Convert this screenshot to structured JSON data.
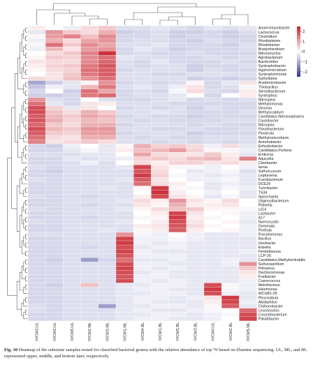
{
  "caption": {
    "label": "Fig. 10",
    "text": "Heatmap of the substrate samples tested for classified bacterial genera with the relative abundance of top 70 based on illumine sequencing. UL, ML, and BL represented upper, middle, and bottom later, respectively"
  },
  "chart_data": {
    "type": "heatmap",
    "samples": [
      "IVCW3.UL",
      "IVCW2.UL",
      "IVCW5.UL",
      "IVCW2.ML",
      "IVCW3.ML",
      "IVCW1.ML",
      "IVCW4.BL",
      "IVCW1.BL",
      "IVCW5.BL",
      "IVCW3.BL",
      "IVCW4.UL",
      "IVCW2.BL",
      "IVCW5.ML"
    ],
    "genera": [
      "Anaeromyxobacter",
      "Lactococcus",
      "Clostridium",
      "Rhodoplanes",
      "Rhodobacter",
      "Bradyrhizobium",
      "Nitrosocyclus",
      "Agrobacterium",
      "Bacteroides",
      "Syntrophobacter",
      "Hyphomicrobium",
      "Syntrophomonas",
      "Sulfuritalea",
      "Acidaminobacter",
      "Thiobacillus",
      "Sterolibacterium",
      "Syntrophus",
      "Nitrospina",
      "Methylomonas",
      "Devosia",
      "Methylocaldum",
      "Candidatus.Nitrososphaera",
      "Caulobacter",
      "Nitrospira",
      "Flavobacterium",
      "Fluviicola",
      "Methylomicrobium",
      "Acinetobacter",
      "Enhydrobacter",
      "Candidatus.Portiera",
      "Emticicia",
      "Aquicella",
      "Clavibacter",
      "Iamia",
      "Sulfuricurvum",
      "Leptonema",
      "Fusobacterium",
      "DCE29",
      "Turicibacter",
      "TS34",
      "Spirochaeta",
      "Uliginosibacterium",
      "Pilimelia",
      "u114",
      "Lacibacter",
      "A17",
      "Nannocystis",
      "Gemmata",
      "Pirellula",
      "Pseudomonas",
      "Bacillus",
      "Geobacter",
      "Estrella",
      "Fimbriimonas",
      "LCP-26",
      "Candidatus.Methylomirabilis",
      "Sulfurospirillum",
      "Pelosinus",
      "Dechloromonas",
      "Fusibacter",
      "Coprococcus",
      "Meiothermus",
      "Halomonas",
      "WCHB1-05",
      "Phormidium",
      "Alkaliphilus",
      "Chthonobacter",
      "Leuconostoc",
      "Corynebacterium",
      "Paludibacter"
    ],
    "values": [
      [
        0.2,
        0.0,
        -0.2,
        0.4,
        0.6,
        -0.4,
        -0.4,
        -0.3,
        -0.4,
        -0.5,
        -0.3,
        -0.4,
        -0.3
      ],
      [
        -0.3,
        1.2,
        0.6,
        0.4,
        0.9,
        -0.6,
        -0.5,
        -0.4,
        -0.6,
        -0.6,
        -0.5,
        -0.6,
        -0.4
      ],
      [
        0.1,
        1.1,
        1.4,
        0.7,
        1.3,
        -0.5,
        -0.5,
        -0.4,
        -0.6,
        -0.5,
        -0.5,
        -0.6,
        -0.5
      ],
      [
        -0.2,
        0.9,
        0.4,
        1.0,
        1.2,
        -0.5,
        -0.4,
        -0.4,
        -0.5,
        -0.6,
        -0.4,
        -0.5,
        -0.5
      ],
      [
        -0.1,
        1.6,
        0.6,
        1.3,
        1.0,
        -0.4,
        -0.4,
        -0.3,
        -0.5,
        -0.5,
        -0.5,
        -0.6,
        -0.4
      ],
      [
        -0.2,
        0.8,
        0.3,
        1.1,
        1.2,
        -0.5,
        -0.3,
        -0.4,
        -0.6,
        -0.5,
        -0.5,
        -0.5,
        -0.4
      ],
      [
        0.0,
        0.4,
        0.6,
        1.4,
        2.3,
        -0.5,
        -0.4,
        -0.5,
        -0.5,
        -0.4,
        -0.5,
        -0.5,
        -0.5
      ],
      [
        0.1,
        0.6,
        0.5,
        1.3,
        1.6,
        -0.3,
        -0.4,
        -0.4,
        -0.5,
        -0.5,
        -0.4,
        -0.5,
        -0.4
      ],
      [
        0.3,
        0.4,
        0.4,
        1.3,
        1.7,
        -0.4,
        -0.5,
        -0.3,
        -0.5,
        -0.5,
        -0.5,
        -0.4,
        -0.5
      ],
      [
        0.2,
        0.5,
        0.6,
        1.5,
        1.9,
        -0.4,
        -0.5,
        -0.4,
        -0.4,
        -0.6,
        -0.5,
        -0.5,
        -0.4
      ],
      [
        0.1,
        0.4,
        0.5,
        1.6,
        1.8,
        -0.5,
        -0.4,
        -0.4,
        -0.4,
        -0.6,
        -0.4,
        -0.5,
        -0.5
      ],
      [
        0.0,
        0.3,
        0.6,
        1.5,
        1.8,
        -0.4,
        -0.4,
        -0.5,
        -0.5,
        -0.4,
        -0.4,
        -0.4,
        -0.4
      ],
      [
        0.4,
        0.3,
        0.7,
        1.2,
        1.6,
        -0.4,
        -0.4,
        -0.4,
        -0.4,
        -0.6,
        -0.5,
        -0.6,
        -0.5
      ],
      [
        -1.1,
        -0.6,
        -0.3,
        0.1,
        1.2,
        -0.5,
        -0.4,
        -0.5,
        -0.4,
        0.1,
        -0.5,
        -0.3,
        0.3
      ],
      [
        -0.7,
        -0.2,
        -0.3,
        0.8,
        1.5,
        -0.4,
        -0.3,
        -0.4,
        -0.2,
        0.3,
        -0.5,
        -0.4,
        -0.1
      ],
      [
        -0.5,
        0.0,
        -0.6,
        1.6,
        1.0,
        -0.5,
        -0.4,
        -0.5,
        -0.1,
        0.4,
        -0.4,
        -0.5,
        0.2
      ],
      [
        -0.6,
        -0.6,
        -0.5,
        1.5,
        1.7,
        -0.5,
        -0.4,
        -0.4,
        -0.3,
        0.0,
        -0.5,
        0.0,
        0.2
      ],
      [
        1.2,
        -0.4,
        -0.5,
        0.0,
        -0.4,
        -0.5,
        -0.5,
        -0.4,
        -0.3,
        -0.5,
        -0.4,
        -0.5,
        -0.4
      ],
      [
        1.6,
        -0.3,
        -0.5,
        0.3,
        0.2,
        -0.4,
        -0.4,
        -0.4,
        -0.5,
        -0.5,
        -0.5,
        -0.5,
        -0.5
      ],
      [
        2.0,
        0.5,
        -0.3,
        0.3,
        0.0,
        -0.5,
        -0.4,
        -0.5,
        -0.4,
        -0.6,
        -0.4,
        -0.5,
        -0.5
      ],
      [
        2.0,
        0.7,
        0.4,
        0.9,
        0.6,
        -0.4,
        -0.4,
        -0.3,
        -0.4,
        -0.5,
        -0.5,
        -0.5,
        -0.4
      ],
      [
        1.8,
        0.8,
        0.6,
        1.0,
        0.8,
        -0.5,
        -0.4,
        -0.5,
        -0.5,
        -0.6,
        -0.5,
        -0.5,
        -0.5
      ],
      [
        1.9,
        0.9,
        0.5,
        0.8,
        0.7,
        -0.4,
        -0.5,
        -0.4,
        -0.5,
        -0.5,
        -0.5,
        -0.4,
        -0.4
      ],
      [
        1.7,
        0.6,
        0.4,
        0.9,
        0.9,
        -0.5,
        -0.4,
        -0.4,
        -0.4,
        -0.5,
        -0.4,
        -0.5,
        -0.5
      ],
      [
        2.0,
        0.8,
        0.6,
        1.2,
        1.2,
        -0.4,
        -0.4,
        -0.5,
        -0.5,
        -0.4,
        -0.5,
        -0.5,
        -0.4
      ],
      [
        1.8,
        0.6,
        0.5,
        1.1,
        1.1,
        -0.5,
        -0.4,
        -0.4,
        -0.4,
        -0.6,
        -0.5,
        -0.5,
        -0.5
      ],
      [
        1.6,
        0.4,
        0.3,
        0.9,
        0.9,
        -0.4,
        -0.5,
        -0.4,
        -0.5,
        -0.5,
        -0.4,
        -0.4,
        -0.4
      ],
      [
        1.4,
        0.3,
        0.4,
        0.6,
        0.4,
        -0.4,
        -0.4,
        -0.5,
        -0.4,
        -0.5,
        -0.4,
        -0.5,
        -0.4
      ],
      [
        -0.5,
        -0.6,
        -0.2,
        0.0,
        -0.3,
        0.1,
        0.9,
        0.5,
        0.6,
        0.4,
        -0.2,
        0.4,
        -0.3
      ],
      [
        -0.5,
        -0.5,
        -0.3,
        -0.1,
        -0.3,
        0.2,
        0.7,
        0.8,
        1.1,
        0.5,
        0.1,
        -0.1,
        -0.2
      ],
      [
        -0.4,
        -0.4,
        -0.4,
        -0.3,
        -0.3,
        0.0,
        1.0,
        0.4,
        0.3,
        0.3,
        0.6,
        0.2,
        -0.3
      ],
      [
        -0.5,
        -0.5,
        -0.3,
        -0.4,
        -0.3,
        -0.2,
        0.5,
        0.6,
        0.4,
        0.7,
        0.8,
        0.3,
        1.4
      ],
      [
        -0.5,
        -0.5,
        -0.4,
        -0.2,
        -0.4,
        0.0,
        0.4,
        0.2,
        0.5,
        0.5,
        0.3,
        0.4,
        0.2
      ],
      [
        -0.4,
        -0.5,
        -0.4,
        -0.4,
        -0.4,
        -0.3,
        2.1,
        0.3,
        0.1,
        -0.1,
        -0.2,
        0.0,
        -0.2
      ],
      [
        -0.5,
        -0.6,
        -0.4,
        -0.4,
        -0.4,
        -0.4,
        1.9,
        0.4,
        0.0,
        -0.3,
        -0.2,
        -0.1,
        -0.4
      ],
      [
        -0.5,
        -0.5,
        -0.4,
        -0.4,
        -0.4,
        -0.4,
        2.2,
        0.5,
        -0.1,
        -0.2,
        -0.3,
        -0.2,
        -0.3
      ],
      [
        -0.4,
        -0.5,
        -0.4,
        -0.4,
        -0.4,
        -0.3,
        1.8,
        0.3,
        0.0,
        -0.2,
        -0.2,
        -0.1,
        -0.3
      ],
      [
        -0.5,
        -0.5,
        -0.4,
        -0.4,
        -0.4,
        -0.4,
        1.6,
        0.4,
        0.2,
        0.0,
        -0.3,
        -0.2,
        -0.3
      ],
      [
        -0.5,
        -0.5,
        -0.4,
        -0.4,
        -0.3,
        -0.4,
        0.1,
        2.2,
        0.1,
        -0.1,
        -0.3,
        -0.1,
        -0.2
      ],
      [
        -0.5,
        -0.5,
        -0.4,
        -0.4,
        -0.4,
        -0.4,
        0.0,
        2.3,
        0.2,
        0.0,
        -0.2,
        0.0,
        -0.3
      ],
      [
        -0.4,
        -0.5,
        -0.4,
        -0.5,
        -0.4,
        -0.4,
        0.2,
        2.0,
        0.3,
        0.1,
        -0.3,
        -0.1,
        -0.3
      ],
      [
        -0.5,
        -0.5,
        -0.4,
        -0.4,
        -0.4,
        -0.3,
        0.4,
        0.2,
        1.2,
        0.3,
        0.1,
        0.4,
        0.0
      ],
      [
        -0.5,
        -0.5,
        -0.4,
        -0.5,
        -0.4,
        -0.4,
        0.3,
        0.1,
        0.9,
        0.2,
        0.2,
        0.3,
        0.0
      ],
      [
        -0.4,
        -0.5,
        -0.4,
        -0.4,
        -0.4,
        -0.3,
        0.1,
        0.4,
        0.7,
        0.6,
        0.1,
        0.1,
        -0.1
      ],
      [
        -0.5,
        -0.5,
        -0.4,
        -0.4,
        -0.4,
        -0.4,
        0.0,
        0.2,
        2.1,
        0.3,
        0.0,
        0.1,
        -0.2
      ],
      [
        -0.5,
        -0.5,
        -0.4,
        -0.5,
        -0.4,
        -0.4,
        -0.1,
        0.1,
        2.2,
        0.2,
        -0.1,
        0.0,
        -0.2
      ],
      [
        -0.4,
        -0.5,
        -0.4,
        -0.4,
        -0.4,
        -0.3,
        0.0,
        0.2,
        2.0,
        0.3,
        0.0,
        0.1,
        -0.3
      ],
      [
        -0.5,
        -0.5,
        -0.4,
        -0.4,
        -0.4,
        -0.4,
        0.2,
        0.3,
        1.9,
        0.4,
        0.1,
        0.0,
        -0.2
      ],
      [
        -0.5,
        -0.5,
        -0.4,
        -0.4,
        -0.3,
        -0.4,
        0.1,
        0.2,
        1.8,
        0.2,
        0.0,
        0.1,
        -0.2
      ],
      [
        -0.4,
        -0.4,
        -0.4,
        -0.4,
        -0.4,
        1.2,
        -0.1,
        -0.2,
        0.0,
        -0.2,
        -0.3,
        -0.3,
        -0.2
      ],
      [
        -0.5,
        -0.5,
        -0.4,
        -0.4,
        -0.4,
        2.1,
        -0.2,
        -0.2,
        -0.1,
        -0.2,
        -0.3,
        -0.3,
        -0.3
      ],
      [
        -0.5,
        -0.5,
        -0.4,
        -0.4,
        -0.4,
        2.2,
        -0.2,
        -0.3,
        -0.2,
        -0.3,
        -0.3,
        -0.3,
        -0.3
      ],
      [
        -0.5,
        -0.5,
        -0.4,
        -0.5,
        -0.4,
        2.0,
        -0.3,
        -0.2,
        -0.2,
        -0.3,
        -0.3,
        -0.3,
        -0.3
      ],
      [
        -0.5,
        -0.5,
        -0.4,
        -0.4,
        -0.4,
        2.1,
        -0.2,
        -0.3,
        -0.3,
        -0.3,
        -0.3,
        -0.3,
        -0.2
      ],
      [
        -0.5,
        -0.5,
        -0.4,
        -0.4,
        -0.4,
        1.9,
        -0.2,
        -0.2,
        -0.2,
        -0.3,
        -0.3,
        -0.3,
        -0.3
      ],
      [
        -0.5,
        -0.6,
        -0.4,
        -1.2,
        -0.5,
        1.6,
        -0.3,
        -0.3,
        -0.2,
        -0.3,
        -0.3,
        -0.2,
        -0.3
      ],
      [
        -0.5,
        -0.5,
        -0.4,
        -0.4,
        -0.4,
        2.0,
        -0.2,
        -0.2,
        -0.3,
        -0.3,
        -0.3,
        -0.2,
        1.2
      ],
      [
        -0.5,
        -0.5,
        -0.4,
        -0.4,
        -0.4,
        2.1,
        -0.2,
        -0.3,
        -0.2,
        -0.3,
        -0.3,
        -0.3,
        0.6
      ],
      [
        -0.5,
        -0.5,
        -0.4,
        -0.4,
        -0.4,
        2.0,
        -0.3,
        -0.2,
        -0.3,
        -0.3,
        -0.3,
        -0.3,
        0.3
      ],
      [
        -0.5,
        -0.5,
        -0.4,
        -0.4,
        -0.4,
        1.9,
        -0.2,
        -0.2,
        -0.3,
        -0.3,
        -0.3,
        -0.3,
        0.2
      ],
      [
        -0.5,
        -0.5,
        -0.4,
        -0.4,
        -0.4,
        2.0,
        -0.2,
        -0.3,
        -0.2,
        -0.3,
        -0.3,
        -0.3,
        -0.2
      ],
      [
        -0.5,
        -0.6,
        -0.4,
        0.7,
        -0.4,
        -0.3,
        -0.3,
        -0.2,
        -0.2,
        -0.3,
        2.0,
        -0.1,
        -0.2
      ],
      [
        -0.5,
        -0.5,
        -0.4,
        -0.4,
        -0.4,
        -0.3,
        -0.2,
        -0.2,
        -0.3,
        -0.3,
        2.2,
        -0.1,
        -0.2
      ],
      [
        -0.5,
        -0.5,
        -0.4,
        -0.4,
        -0.4,
        -0.3,
        -0.3,
        -0.2,
        -0.2,
        -0.3,
        2.0,
        -0.2,
        -0.3
      ],
      [
        -0.5,
        -0.5,
        -0.4,
        -0.4,
        -0.4,
        -0.3,
        -0.2,
        -0.2,
        -0.3,
        -0.2,
        0.3,
        2.2,
        -0.3
      ],
      [
        -0.5,
        -0.5,
        -0.4,
        -0.4,
        -0.4,
        -0.3,
        -0.2,
        -0.3,
        -0.3,
        -0.3,
        0.2,
        2.1,
        -0.2
      ],
      [
        -0.4,
        -0.5,
        -0.4,
        -0.4,
        -1.2,
        -0.3,
        -0.3,
        -0.2,
        -0.2,
        -0.3,
        0.1,
        1.8,
        -0.3
      ],
      [
        -0.4,
        -0.5,
        -0.4,
        -0.4,
        -0.4,
        -0.3,
        -0.2,
        -0.3,
        -0.3,
        -0.2,
        -0.1,
        0.0,
        1.7
      ],
      [
        -0.5,
        -0.5,
        -0.4,
        -0.4,
        -0.4,
        -0.3,
        -0.3,
        -0.2,
        -0.2,
        -0.3,
        -0.2,
        -0.1,
        2.0
      ],
      [
        -0.5,
        -0.5,
        -0.4,
        -0.4,
        -0.4,
        -0.3,
        -0.2,
        -0.2,
        -0.3,
        -0.3,
        -0.2,
        0.0,
        2.1
      ]
    ],
    "color_scale": {
      "min": -2.5,
      "max": 2.5,
      "low_color": "#313695",
      "mid_color": "#ffffff",
      "high_color": "#c8202b"
    },
    "colorbar_ticks": [
      2,
      1,
      0,
      -1,
      -2
    ],
    "legend_position": "top-right",
    "row_dendrogram": "left",
    "column_dendrogram": "top"
  }
}
